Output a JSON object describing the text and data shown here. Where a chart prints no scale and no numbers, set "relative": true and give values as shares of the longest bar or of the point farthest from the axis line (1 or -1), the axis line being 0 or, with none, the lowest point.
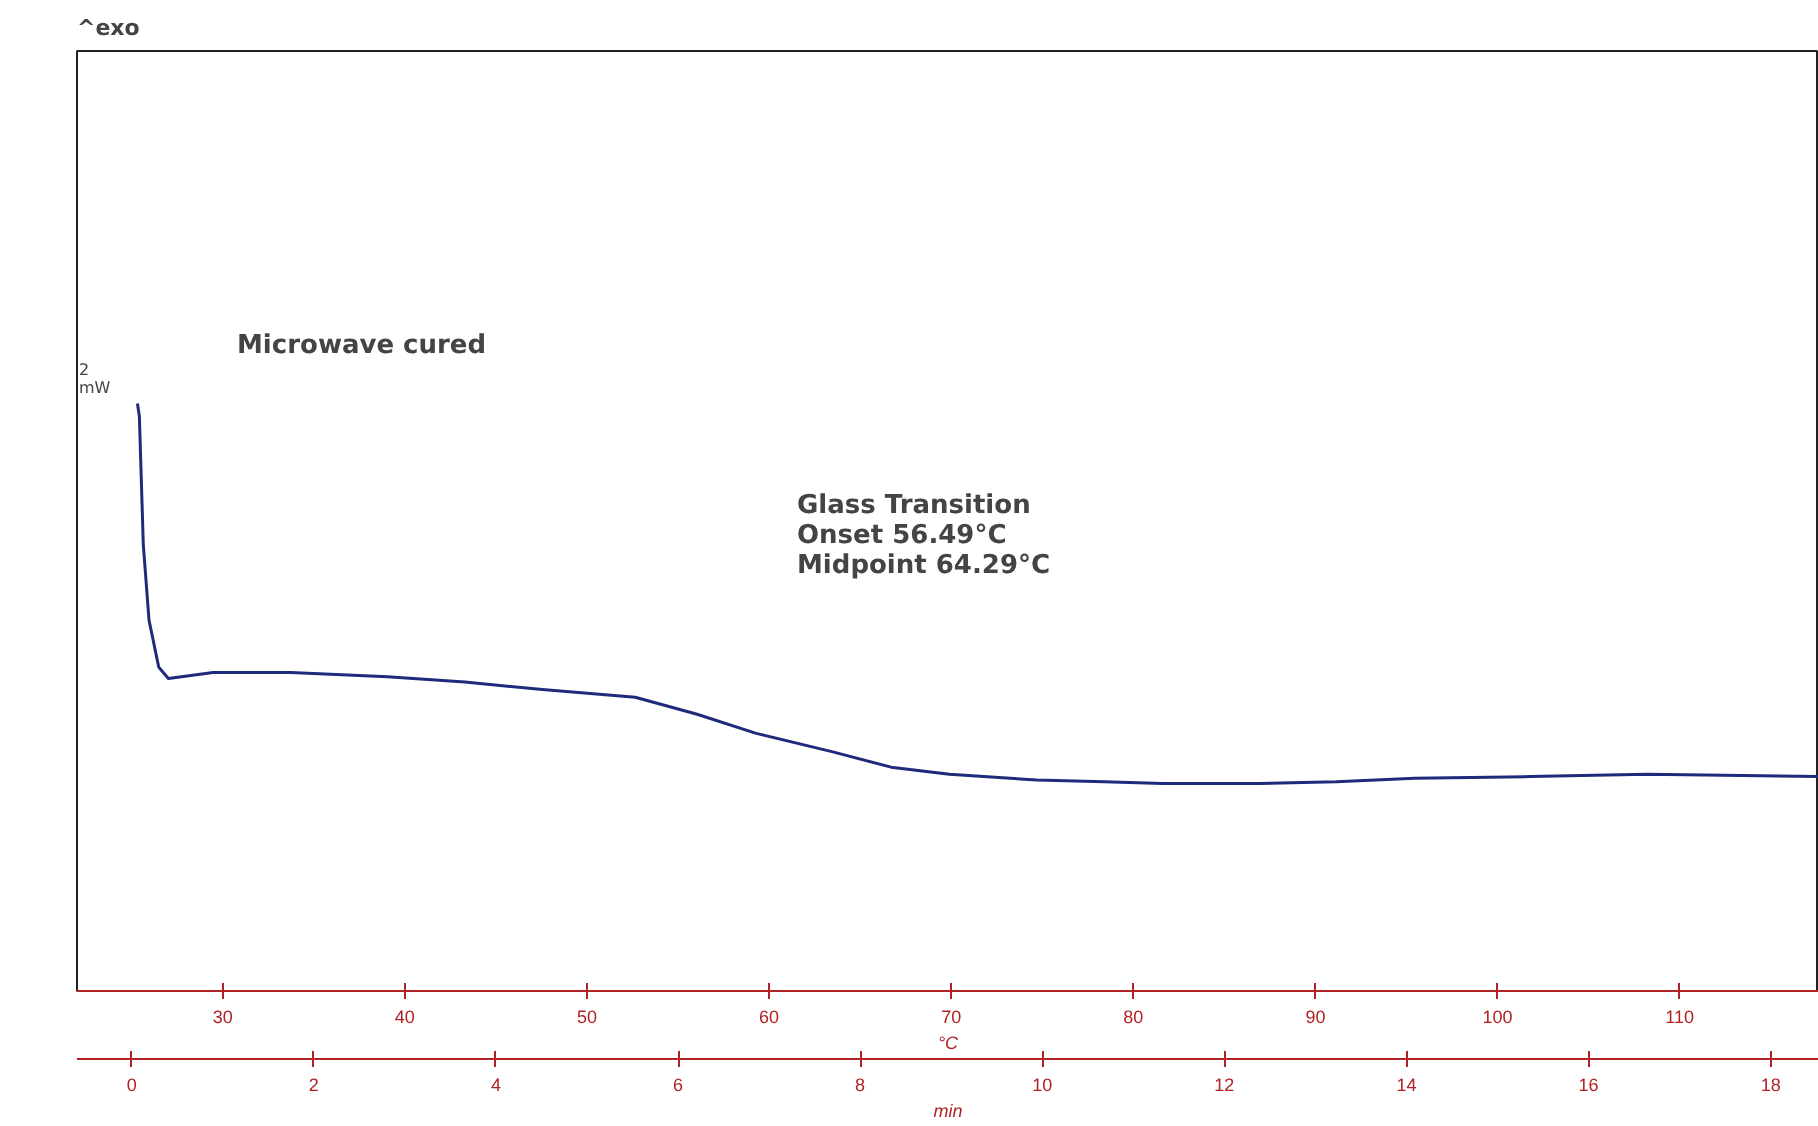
{
  "chart_data": {
    "type": "line",
    "relative": true,
    "xlabel": "min",
    "x2label": "°C",
    "xlim": [
      -0.6,
      18.53
    ],
    "xticks": [
      0,
      2,
      4,
      6,
      8,
      10,
      12,
      14,
      16,
      18
    ],
    "x2lim": [
      22,
      117.65
    ],
    "x2ticks": [
      30,
      40,
      50,
      60,
      70,
      80,
      90,
      100,
      110
    ],
    "grid": false,
    "marker": "none",
    "line_style": "solid",
    "annotations": [
      "^exo",
      "Microwave cured",
      "Glass Transition\nOnset       56.49°C\nMidpoint  64.29°C",
      "2\nmW"
    ],
    "series": [
      {
        "color": "#1f2a7a",
        "x": [
          0.064,
          0.085,
          0.128,
          0.191,
          0.298,
          0.404,
          0.894,
          1.745,
          2.809,
          3.66,
          4.51,
          5.53,
          6.21,
          6.85,
          7.7,
          8.34,
          8.98,
          9.94,
          10.68,
          11.32,
          12.38,
          13.23,
          14.09,
          15.36,
          16.64,
          18.53
        ],
        "values": [
          1.0,
          0.978,
          0.76,
          0.631,
          0.551,
          0.532,
          0.542,
          0.542,
          0.535,
          0.526,
          0.513,
          0.5,
          0.471,
          0.439,
          0.407,
          0.381,
          0.369,
          0.359,
          0.356,
          0.353,
          0.353,
          0.356,
          0.362,
          0.365,
          0.369,
          0.365
        ]
      }
    ]
  }
}
